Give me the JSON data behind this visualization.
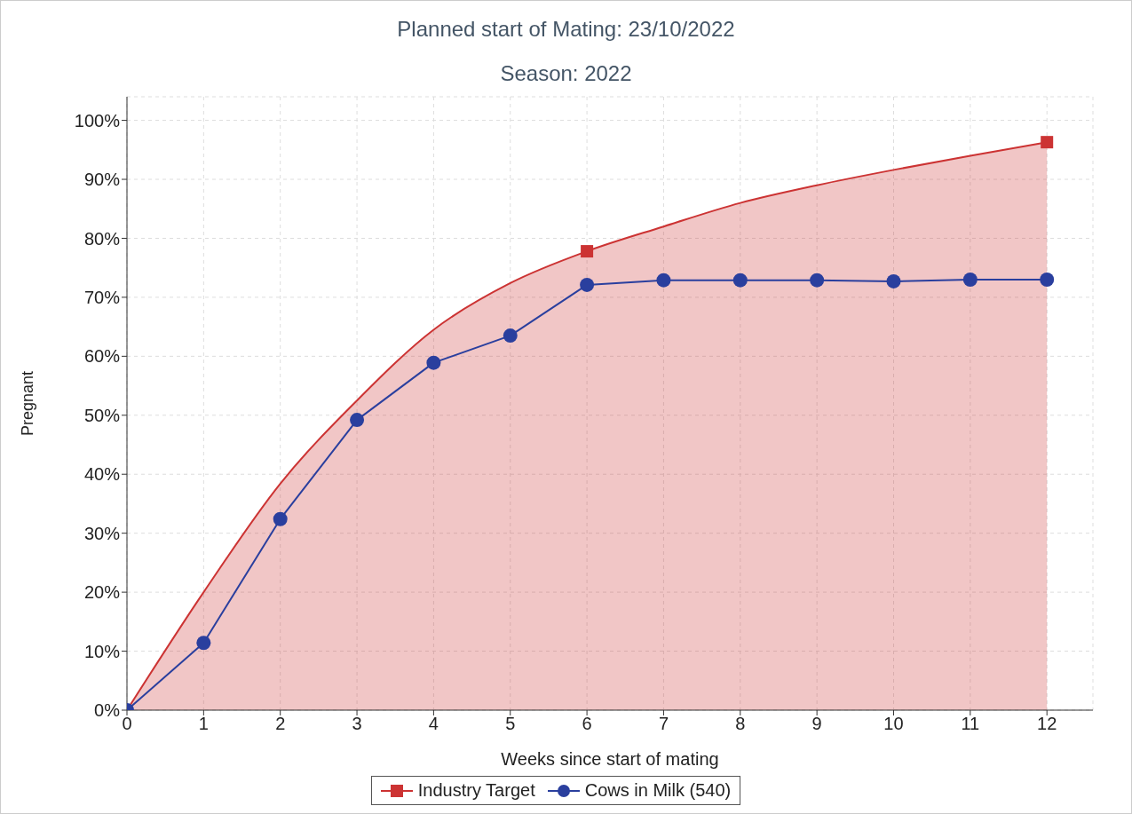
{
  "chart_data": {
    "type": "line",
    "title": "Planned start of Mating: 23/10/2022",
    "subtitle": "Season: 2022",
    "xlabel": "Weeks since start of mating",
    "ylabel": "Pregnant",
    "x": [
      0,
      1,
      2,
      3,
      4,
      5,
      6,
      7,
      8,
      9,
      10,
      11,
      12
    ],
    "series": [
      {
        "type": "area",
        "color": "#cc3333",
        "marker": "none",
        "values": [
          0,
          20,
          38.4,
          52.5,
          64.5,
          72.4,
          77.8,
          82,
          86,
          89,
          91.6,
          94,
          96.3
        ]
      },
      {
        "type": "scatter",
        "name": "Industry Target",
        "color": "#cc3333",
        "marker": "square",
        "x": [
          6,
          12
        ],
        "values": [
          77.8,
          96.3
        ]
      },
      {
        "name": "Cows in Milk (540)",
        "color": "#2a3f9e",
        "marker": "circle",
        "values": [
          0,
          11.4,
          32.4,
          49.2,
          58.9,
          63.5,
          72.1,
          72.9,
          72.9,
          72.9,
          72.7,
          73,
          73
        ]
      }
    ],
    "xlim": [
      0,
      12.6
    ],
    "xticks": [
      0,
      1,
      2,
      3,
      4,
      5,
      6,
      7,
      8,
      9,
      10,
      11,
      12
    ],
    "ylim": [
      0,
      104
    ],
    "yticks": [
      {
        "value": 0,
        "label": "0%"
      },
      {
        "value": 10,
        "label": "10%"
      },
      {
        "value": 20,
        "label": "20%"
      },
      {
        "value": 30,
        "label": "30%"
      },
      {
        "value": 40,
        "label": "40%"
      },
      {
        "value": 50,
        "label": "50%"
      },
      {
        "value": 60,
        "label": "60%"
      },
      {
        "value": 70,
        "label": "70%"
      },
      {
        "value": 80,
        "label": "80%"
      },
      {
        "value": 90,
        "label": "90%"
      },
      {
        "value": 100,
        "label": "100%"
      }
    ],
    "grid": true,
    "legend": "bottom"
  }
}
